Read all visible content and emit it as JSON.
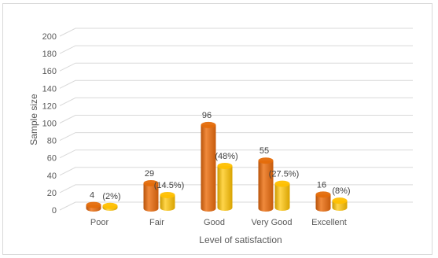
{
  "chart_data": {
    "type": "bar",
    "categories": [
      "Poor",
      "Fair",
      "Good",
      "Very Good",
      "Excellent"
    ],
    "series": [
      {
        "values": [
          4,
          29,
          96,
          55,
          16
        ],
        "data_labels": [
          "4",
          "29",
          "96",
          "55",
          "16"
        ],
        "color": "#e46c0a"
      },
      {
        "values": [
          2,
          14.5,
          48,
          27.5,
          8
        ],
        "data_labels": [
          "(2%)",
          "(14.5%)",
          "(48%)",
          "(27.5%)",
          "(8%)"
        ],
        "color": "#ffc000"
      }
    ],
    "title": "",
    "xlabel": "Level of satisfaction",
    "ylabel": "Sample size",
    "ylim": [
      0,
      200
    ],
    "yticks": [
      0,
      20,
      40,
      60,
      80,
      100,
      120,
      140,
      160,
      180,
      200
    ],
    "grid": true,
    "legend": "none",
    "style": "3d-cylinder"
  }
}
